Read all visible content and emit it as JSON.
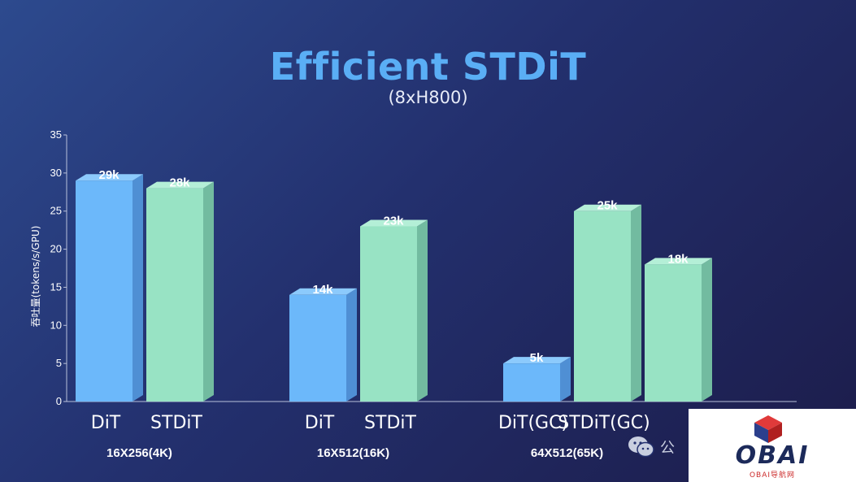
{
  "chart_data": {
    "type": "bar",
    "title": "Efficient STDiT",
    "subtitle": "(8xH800)",
    "ylabel": "吞吐量(tokens/s/GPU)",
    "ylim": [
      0,
      35
    ],
    "yticks": [
      0,
      5,
      10,
      15,
      20,
      25,
      30,
      35
    ],
    "groups": [
      {
        "label": "16X256(4K)",
        "bars": [
          {
            "label": "DiT",
            "value": 29,
            "data_label": "29k",
            "series": "DiT"
          },
          {
            "label": "STDiT",
            "value": 28,
            "data_label": "28k",
            "series": "STDiT"
          }
        ]
      },
      {
        "label": "16X512(16K)",
        "bars": [
          {
            "label": "DiT",
            "value": 14,
            "data_label": "14k",
            "series": "DiT"
          },
          {
            "label": "STDiT",
            "value": 23,
            "data_label": "23k",
            "series": "STDiT"
          }
        ]
      },
      {
        "label": "64X512(65K)",
        "bars": [
          {
            "label": "DiT(GC)",
            "value": 5,
            "data_label": "5k",
            "series": "DiT"
          },
          {
            "label": "STDiT(GC)",
            "value": 25,
            "data_label": "25k",
            "series": "STDiT"
          },
          {
            "label": "",
            "value": 18,
            "data_label": "18k",
            "series": "STDiT"
          }
        ]
      }
    ],
    "colors": {
      "DiT": "#6cb8fa",
      "STDiT": "#98e3c4"
    },
    "grid": false
  },
  "watermark": {
    "text": "公",
    "icon": "wechat-icon"
  },
  "logo": {
    "text": "OBAI",
    "subtext": "OBAI导航网",
    "icon": "cube-icon"
  }
}
